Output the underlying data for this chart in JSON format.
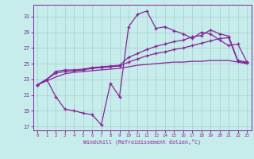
{
  "bg_color": "#c6eceb",
  "grid_color": "#aacccc",
  "line_color": "#882299",
  "xlim": [
    -0.5,
    23.5
  ],
  "ylim": [
    16.5,
    32.5
  ],
  "yticks": [
    17,
    19,
    21,
    23,
    25,
    27,
    29,
    31
  ],
  "xticks": [
    0,
    1,
    2,
    3,
    4,
    5,
    6,
    7,
    8,
    9,
    10,
    11,
    12,
    13,
    14,
    15,
    16,
    17,
    18,
    19,
    20,
    21,
    22,
    23
  ],
  "xlabel": "Windchill (Refroidissement éolien,°C)",
  "series_jagged_x": [
    0,
    1,
    2,
    3,
    4,
    5,
    6,
    7,
    8,
    9,
    10,
    11,
    12,
    13,
    14,
    15,
    16,
    17,
    18,
    19,
    20,
    21,
    22,
    23
  ],
  "series_jagged_y": [
    22.3,
    23.0,
    20.8,
    19.2,
    19.0,
    18.7,
    18.5,
    17.2,
    22.5,
    20.8,
    29.7,
    31.3,
    31.7,
    29.5,
    29.7,
    29.2,
    28.8,
    28.2,
    29.0,
    28.8,
    28.0,
    27.3,
    27.5,
    25.2
  ],
  "series_high_x": [
    0,
    1,
    2,
    3,
    4,
    5,
    6,
    7,
    8,
    9,
    10,
    11,
    12,
    13,
    14,
    15,
    16,
    17,
    18,
    19,
    20,
    21,
    22,
    23
  ],
  "series_high_y": [
    22.3,
    23.0,
    24.0,
    24.2,
    24.2,
    24.3,
    24.5,
    24.6,
    24.7,
    24.8,
    25.8,
    26.3,
    26.8,
    27.2,
    27.5,
    27.8,
    28.0,
    28.4,
    28.6,
    29.3,
    28.8,
    28.5,
    25.4,
    25.2
  ],
  "series_mid_x": [
    0,
    1,
    2,
    3,
    4,
    5,
    6,
    7,
    8,
    9,
    10,
    11,
    12,
    13,
    14,
    15,
    16,
    17,
    18,
    19,
    20,
    21,
    22,
    23
  ],
  "series_mid_y": [
    22.3,
    23.0,
    23.8,
    24.0,
    24.1,
    24.2,
    24.4,
    24.5,
    24.6,
    24.7,
    25.2,
    25.6,
    26.0,
    26.3,
    26.5,
    26.8,
    27.0,
    27.3,
    27.6,
    27.9,
    28.2,
    28.3,
    25.3,
    25.1
  ],
  "series_low_x": [
    0,
    1,
    2,
    3,
    4,
    5,
    6,
    7,
    8,
    9,
    10,
    11,
    12,
    13,
    14,
    15,
    16,
    17,
    18,
    19,
    20,
    21,
    22,
    23
  ],
  "series_low_y": [
    22.3,
    22.8,
    23.3,
    23.7,
    23.9,
    24.0,
    24.1,
    24.2,
    24.3,
    24.4,
    24.6,
    24.8,
    24.9,
    25.0,
    25.1,
    25.2,
    25.2,
    25.3,
    25.3,
    25.4,
    25.4,
    25.4,
    25.2,
    25.0
  ]
}
